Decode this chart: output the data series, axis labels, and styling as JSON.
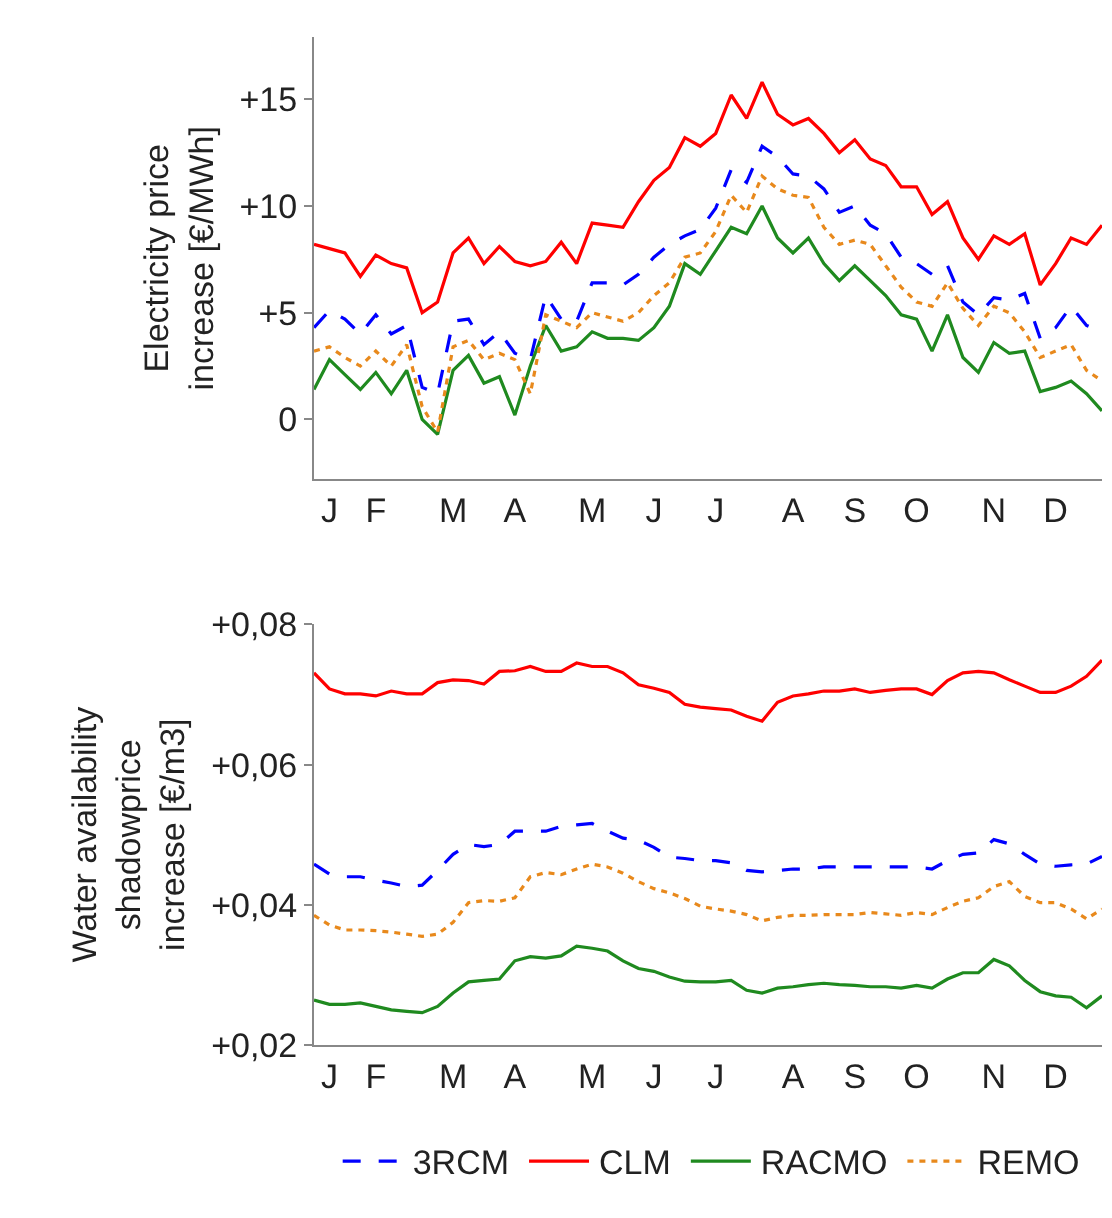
{
  "chart_data": [
    {
      "type": "line",
      "ylabel": "Electricity price\nincrease [€/MWh]",
      "categories": [
        null,
        "J",
        null,
        null,
        "F",
        null,
        null,
        null,
        null,
        "M",
        null,
        null,
        null,
        "A",
        null,
        null,
        null,
        null,
        "M",
        null,
        null,
        null,
        "J",
        null,
        null,
        null,
        "J",
        null,
        null,
        null,
        null,
        "A",
        null,
        null,
        null,
        "S",
        null,
        null,
        null,
        "O",
        null,
        null,
        null,
        null,
        "N",
        null,
        null,
        null,
        "D",
        null,
        null,
        null
      ],
      "ylim": [
        -2.8,
        17.9
      ],
      "yticks": [
        {
          "value": 0,
          "label": "0"
        },
        {
          "value": 5,
          "label": "+5"
        },
        {
          "value": 10,
          "label": "+10"
        },
        {
          "value": 15,
          "label": "+15"
        }
      ],
      "legend": false,
      "series": [
        {
          "color": "#0000ff",
          "line_style": "dashed",
          "values": [
            4.3,
            5.1,
            4.7,
            4.0,
            4.9,
            4.0,
            4.4,
            1.5,
            1.2,
            4.6,
            4.7,
            3.5,
            4.1,
            3.1,
            2.8,
            5.8,
            4.7,
            4.6,
            6.4,
            6.4,
            6.3,
            6.8,
            7.6,
            8.2,
            8.6,
            8.9,
            9.9,
            11.7,
            11.1,
            12.8,
            12.3,
            11.5,
            11.4,
            10.8,
            9.7,
            10.0,
            9.1,
            8.7,
            7.6,
            7.3,
            6.8,
            7.2,
            5.5,
            4.9,
            5.7,
            5.6,
            5.9,
            3.8,
            4.3,
            5.3,
            4.4,
            4.1
          ]
        },
        {
          "color": "#ff0000",
          "line_style": "solid",
          "values": [
            8.2,
            8.0,
            7.8,
            6.7,
            7.7,
            7.3,
            7.1,
            5.0,
            5.5,
            7.8,
            8.5,
            7.3,
            8.1,
            7.4,
            7.2,
            7.4,
            8.3,
            7.3,
            9.2,
            9.1,
            9.0,
            10.2,
            11.2,
            11.8,
            13.2,
            12.8,
            13.4,
            15.2,
            14.1,
            15.8,
            14.3,
            13.8,
            14.1,
            13.4,
            12.5,
            13.1,
            12.2,
            11.9,
            10.9,
            10.9,
            9.6,
            10.2,
            8.5,
            7.5,
            8.6,
            8.2,
            8.7,
            6.3,
            7.3,
            8.5,
            8.2,
            9.1
          ]
        },
        {
          "color": "#1f8a1f",
          "line_style": "solid",
          "values": [
            1.4,
            2.8,
            2.1,
            1.4,
            2.2,
            1.2,
            2.3,
            0.0,
            -0.7,
            2.3,
            3.0,
            1.7,
            2.0,
            0.2,
            2.5,
            4.4,
            3.2,
            3.4,
            4.1,
            3.8,
            3.8,
            3.7,
            4.3,
            5.3,
            7.3,
            6.8,
            7.9,
            9.0,
            8.7,
            10.0,
            8.5,
            7.8,
            8.5,
            7.3,
            6.5,
            7.2,
            6.5,
            5.8,
            4.9,
            4.7,
            3.2,
            4.9,
            2.9,
            2.2,
            3.6,
            3.1,
            3.2,
            1.3,
            1.5,
            1.8,
            1.2,
            0.4
          ]
        },
        {
          "color": "#e8891c",
          "line_style": "dotted",
          "values": [
            3.2,
            3.4,
            2.9,
            2.5,
            3.2,
            2.5,
            3.5,
            0.6,
            -0.6,
            3.4,
            3.7,
            2.8,
            3.1,
            2.8,
            1.2,
            4.9,
            4.6,
            4.3,
            5.0,
            4.8,
            4.6,
            5.0,
            5.8,
            6.4,
            7.6,
            7.8,
            8.8,
            10.5,
            9.7,
            11.4,
            10.8,
            10.5,
            10.4,
            9.0,
            8.2,
            8.4,
            8.2,
            7.2,
            6.2,
            5.5,
            5.3,
            6.4,
            5.2,
            4.4,
            5.3,
            5.0,
            4.1,
            2.9,
            3.2,
            3.5,
            2.3,
            1.8
          ]
        }
      ]
    },
    {
      "type": "line",
      "ylabel": "Water availability\nshadowprice\nincrease [€/m3]",
      "categories": [
        null,
        "J",
        null,
        null,
        "F",
        null,
        null,
        null,
        null,
        "M",
        null,
        null,
        null,
        "A",
        null,
        null,
        null,
        null,
        "M",
        null,
        null,
        null,
        "J",
        null,
        null,
        null,
        "J",
        null,
        null,
        null,
        null,
        "A",
        null,
        null,
        null,
        "S",
        null,
        null,
        null,
        "O",
        null,
        null,
        null,
        null,
        "N",
        null,
        null,
        null,
        "D",
        null,
        null,
        null
      ],
      "ylim": [
        0.02,
        0.08
      ],
      "yticks": [
        {
          "value": 0.02,
          "label": "+0,02"
        },
        {
          "value": 0.04,
          "label": "+0,04"
        },
        {
          "value": 0.06,
          "label": "+0,06"
        },
        {
          "value": 0.08,
          "label": "+0,08"
        }
      ],
      "legend": "bottom",
      "series": [
        {
          "name": "3RCM",
          "color": "#0000ff",
          "line_style": "dashed",
          "values": [
            0.0458,
            0.0444,
            0.044,
            0.044,
            0.0435,
            0.0431,
            0.0426,
            0.0428,
            0.0449,
            0.0472,
            0.0486,
            0.0483,
            0.0486,
            0.0505,
            0.0505,
            0.0505,
            0.0512,
            0.0514,
            0.0516,
            0.0505,
            0.0495,
            0.0492,
            0.0482,
            0.0468,
            0.0466,
            0.0463,
            0.0463,
            0.046,
            0.0449,
            0.0447,
            0.0449,
            0.0451,
            0.0451,
            0.0454,
            0.0454,
            0.0454,
            0.0454,
            0.0454,
            0.0454,
            0.0454,
            0.0451,
            0.0463,
            0.0472,
            0.0474,
            0.0493,
            0.0487,
            0.0472,
            0.0458,
            0.0455,
            0.0457,
            0.0458,
            0.0469
          ]
        },
        {
          "name": "CLM",
          "color": "#ff0000",
          "line_style": "solid",
          "values": [
            0.0731,
            0.0708,
            0.0701,
            0.0701,
            0.0698,
            0.0705,
            0.0701,
            0.0701,
            0.0717,
            0.0721,
            0.072,
            0.0715,
            0.0733,
            0.0734,
            0.074,
            0.0733,
            0.0733,
            0.0745,
            0.074,
            0.074,
            0.0731,
            0.0714,
            0.0709,
            0.0703,
            0.0686,
            0.0682,
            0.068,
            0.0678,
            0.0669,
            0.0662,
            0.0689,
            0.0698,
            0.0701,
            0.0705,
            0.0705,
            0.0708,
            0.0703,
            0.0706,
            0.0708,
            0.0708,
            0.07,
            0.072,
            0.0731,
            0.0733,
            0.0731,
            0.0721,
            0.0712,
            0.0703,
            0.0703,
            0.0712,
            0.0726,
            0.0749
          ]
        },
        {
          "name": "RACMO",
          "color": "#1f8a1f",
          "line_style": "solid",
          "values": [
            0.0264,
            0.0258,
            0.0258,
            0.026,
            0.0255,
            0.025,
            0.0248,
            0.0246,
            0.0255,
            0.0274,
            0.029,
            0.0292,
            0.0294,
            0.032,
            0.0326,
            0.0324,
            0.0327,
            0.0341,
            0.0338,
            0.0334,
            0.032,
            0.0309,
            0.0305,
            0.0297,
            0.0291,
            0.029,
            0.029,
            0.0292,
            0.0278,
            0.0274,
            0.0281,
            0.0283,
            0.0286,
            0.0288,
            0.0286,
            0.0285,
            0.0283,
            0.0283,
            0.0281,
            0.0285,
            0.0281,
            0.0294,
            0.0303,
            0.0303,
            0.0322,
            0.0313,
            0.0292,
            0.0276,
            0.027,
            0.0268,
            0.0253,
            0.027
          ]
        },
        {
          "name": "REMO",
          "color": "#e8891c",
          "line_style": "dotted",
          "values": [
            0.0385,
            0.0371,
            0.0364,
            0.0364,
            0.0363,
            0.0361,
            0.0358,
            0.0355,
            0.0358,
            0.0375,
            0.0403,
            0.0406,
            0.0405,
            0.041,
            0.044,
            0.0446,
            0.0443,
            0.0451,
            0.0458,
            0.0454,
            0.0445,
            0.0433,
            0.0423,
            0.0417,
            0.0409,
            0.0398,
            0.0394,
            0.0391,
            0.0386,
            0.0377,
            0.0382,
            0.0385,
            0.0385,
            0.0386,
            0.0386,
            0.0386,
            0.0389,
            0.0387,
            0.0385,
            0.0389,
            0.0386,
            0.0396,
            0.0405,
            0.041,
            0.0426,
            0.0433,
            0.0412,
            0.0403,
            0.0403,
            0.0394,
            0.038,
            0.0394
          ]
        }
      ]
    }
  ]
}
